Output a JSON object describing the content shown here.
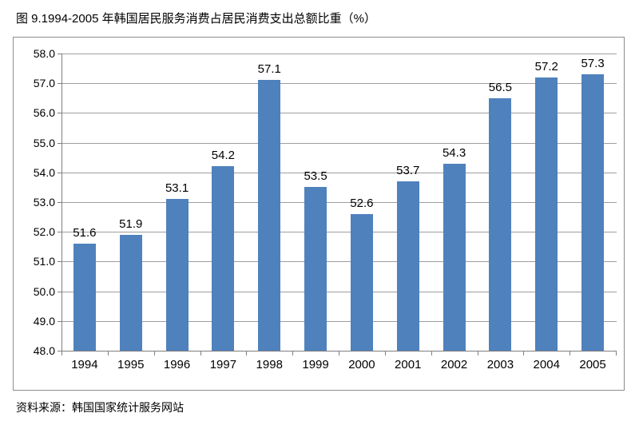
{
  "title": "图 9.1994-2005 年韩国居民服务消费占居民消费支出总额比重（%）",
  "source_note": "资料来源：韩国国家统计服务网站",
  "colors": {
    "bar": "#4F81BD",
    "gridline": "#9E9E9E",
    "axis": "#7F7F7F",
    "chart_border": "#8C8C8C",
    "text": "#000000",
    "background": "#FFFFFF"
  },
  "chart_data": {
    "type": "bar",
    "categories": [
      "1994",
      "1995",
      "1996",
      "1997",
      "1998",
      "1999",
      "2000",
      "2001",
      "2002",
      "2003",
      "2004",
      "2005"
    ],
    "values": [
      51.6,
      51.9,
      53.1,
      54.2,
      57.1,
      53.5,
      52.6,
      53.7,
      54.3,
      56.5,
      57.2,
      57.3
    ],
    "title": "",
    "xlabel": "",
    "ylabel": "",
    "ylim": [
      48.0,
      58.0
    ],
    "ytick_step": 1.0,
    "ytick_decimals": 1,
    "grid": true,
    "legend": false,
    "data_labels": true
  }
}
